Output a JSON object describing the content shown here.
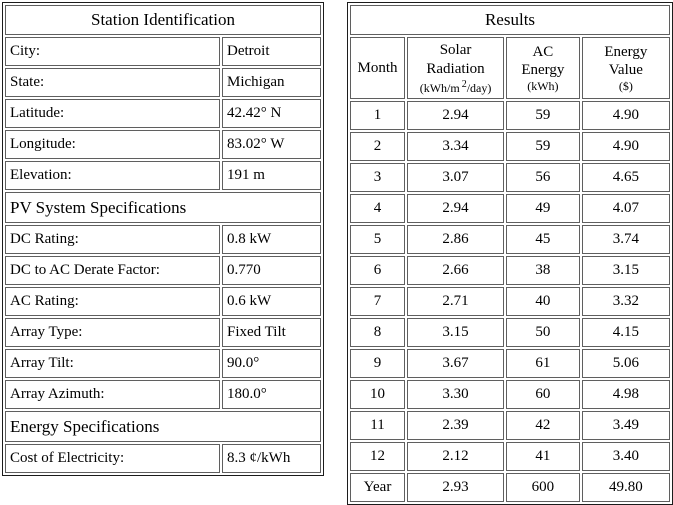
{
  "station": {
    "title": "Station Identification",
    "id_rows": [
      {
        "label": "City:",
        "value": "Detroit"
      },
      {
        "label": "State:",
        "value": "Michigan"
      },
      {
        "label": "Latitude:",
        "value": "42.42° N"
      },
      {
        "label": "Longitude:",
        "value": "83.02° W"
      },
      {
        "label": "Elevation:",
        "value": "191 m"
      }
    ],
    "pv_section_title": "PV System Specifications",
    "pv_rows": [
      {
        "label": "DC Rating:",
        "value": "0.8 kW"
      },
      {
        "label": "DC to AC Derate Factor:",
        "value": "0.770"
      },
      {
        "label": "AC Rating:",
        "value": "0.6 kW"
      },
      {
        "label": "Array Type:",
        "value": "Fixed Tilt"
      },
      {
        "label": "Array Tilt:",
        "value": "90.0°"
      },
      {
        "label": "Array Azimuth:",
        "value": "180.0°"
      }
    ],
    "energy_section_title": "Energy Specifications",
    "energy_rows": [
      {
        "label": "Cost of Electricity:",
        "value": "8.3 ¢/kWh"
      }
    ]
  },
  "results": {
    "title": "Results",
    "columns": {
      "month": "Month",
      "solar_line1": "Solar",
      "solar_line2": "Radiation",
      "solar_unit_prefix": "(kWh/m",
      "solar_unit_sup": "2",
      "solar_unit_suffix": "/day)",
      "ac_line1": "AC",
      "ac_line2": "Energy",
      "ac_unit": "(kWh)",
      "value_line1": "Energy",
      "value_line2": "Value",
      "value_unit": "($)"
    },
    "rows": [
      {
        "month": "1",
        "solar": "2.94",
        "ac": "59",
        "value": "4.90"
      },
      {
        "month": "2",
        "solar": "3.34",
        "ac": "59",
        "value": "4.90"
      },
      {
        "month": "3",
        "solar": "3.07",
        "ac": "56",
        "value": "4.65"
      },
      {
        "month": "4",
        "solar": "2.94",
        "ac": "49",
        "value": "4.07"
      },
      {
        "month": "5",
        "solar": "2.86",
        "ac": "45",
        "value": "3.74"
      },
      {
        "month": "6",
        "solar": "2.66",
        "ac": "38",
        "value": "3.15"
      },
      {
        "month": "7",
        "solar": "2.71",
        "ac": "40",
        "value": "3.32"
      },
      {
        "month": "8",
        "solar": "3.15",
        "ac": "50",
        "value": "4.15"
      },
      {
        "month": "9",
        "solar": "3.67",
        "ac": "61",
        "value": "5.06"
      },
      {
        "month": "10",
        "solar": "3.30",
        "ac": "60",
        "value": "4.98"
      },
      {
        "month": "11",
        "solar": "2.39",
        "ac": "42",
        "value": "3.49"
      },
      {
        "month": "12",
        "solar": "2.12",
        "ac": "41",
        "value": "3.40"
      }
    ],
    "year_row": {
      "month": "Year",
      "solar": "2.93",
      "ac": "600",
      "value": "49.80"
    }
  }
}
